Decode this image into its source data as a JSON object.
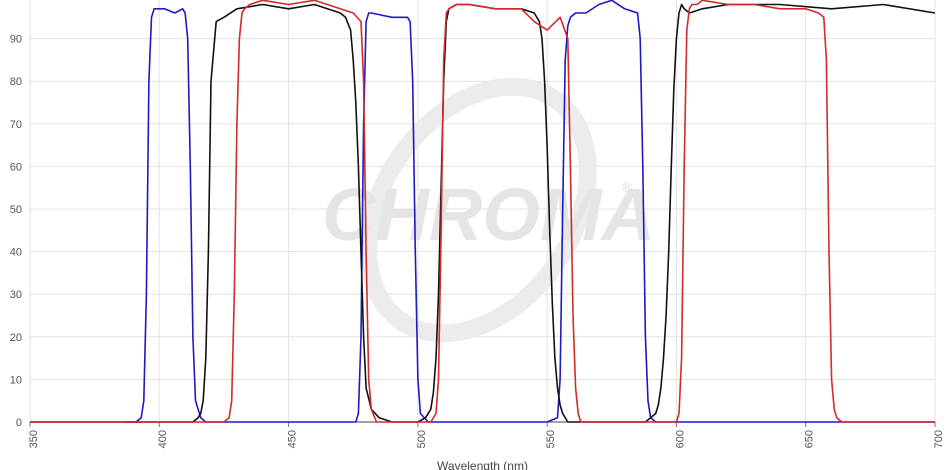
{
  "watermark": {
    "text": "CHROMA",
    "registered": "®"
  },
  "chart_data": {
    "type": "line",
    "title": "",
    "xlabel": "Wavelength (nm)",
    "ylabel": "",
    "xlim": [
      350,
      700
    ],
    "ylim": [
      0,
      100
    ],
    "xticks": [
      350,
      400,
      450,
      500,
      550,
      600,
      650,
      700
    ],
    "yticks": [
      0,
      10,
      20,
      30,
      40,
      50,
      60,
      70,
      80,
      90
    ],
    "grid": true,
    "legend": "none",
    "series": [
      {
        "color": "#1a1ac8",
        "x": [
          387,
          391,
          393,
          394,
          395,
          396,
          397,
          398,
          402,
          406,
          409,
          410,
          411,
          412,
          413,
          414,
          416,
          418,
          430,
          476,
          477,
          478,
          479,
          480,
          481,
          482,
          490,
          496,
          497,
          498,
          499,
          500,
          501,
          504,
          510,
          550,
          554,
          555,
          556,
          557,
          558,
          559,
          561,
          565,
          570,
          575,
          580,
          585,
          586,
          587,
          588,
          589,
          590,
          592,
          595,
          600,
          700
        ],
        "y": [
          0,
          0,
          1,
          5,
          30,
          80,
          95,
          97,
          97,
          96,
          97,
          96,
          90,
          60,
          20,
          5,
          1,
          0,
          0,
          0,
          2,
          20,
          70,
          94,
          96,
          96,
          95,
          95,
          94,
          80,
          40,
          10,
          2,
          0,
          0,
          0,
          1,
          10,
          50,
          85,
          93,
          95,
          96,
          96,
          98,
          99,
          97,
          96,
          90,
          60,
          20,
          5,
          1,
          0,
          0,
          0,
          0
        ]
      },
      {
        "color": "#111111",
        "x": [
          350,
          385,
          400,
          405,
          410,
          413,
          415,
          416,
          417,
          418,
          419,
          420,
          422,
          425,
          430,
          440,
          450,
          460,
          465,
          470,
          472,
          474,
          475,
          476,
          477,
          478,
          479,
          480,
          482,
          485,
          490,
          495,
          500,
          503,
          505,
          506,
          507,
          508,
          509,
          510,
          511,
          512,
          515,
          520,
          530,
          540,
          545,
          547,
          548,
          549,
          550,
          551,
          552,
          553,
          554,
          555,
          556,
          557,
          558,
          560,
          565,
          570,
          575,
          580,
          585,
          588,
          590,
          592,
          593,
          594,
          595,
          596,
          597,
          598,
          599,
          600,
          601,
          602,
          603,
          605,
          610,
          620,
          640,
          660,
          680,
          700
        ],
        "y": [
          0,
          0,
          0,
          0,
          0,
          0,
          1,
          2,
          5,
          15,
          40,
          80,
          94,
          95,
          97,
          98,
          97,
          98,
          97,
          96,
          95,
          92,
          85,
          75,
          60,
          40,
          20,
          8,
          3,
          1,
          0,
          0,
          0,
          1,
          3,
          7,
          15,
          30,
          55,
          80,
          94,
          97,
          98,
          98,
          97,
          97,
          96,
          94,
          90,
          80,
          65,
          45,
          28,
          15,
          8,
          4,
          2,
          1,
          0,
          0,
          0,
          0,
          0,
          0,
          0,
          0,
          1,
          2,
          4,
          8,
          15,
          25,
          40,
          60,
          78,
          90,
          96,
          98,
          97,
          96,
          97,
          98,
          98,
          97,
          98,
          96
        ]
      },
      {
        "color": "#d42a2a",
        "x": [
          350,
          425,
          427,
          428,
          429,
          430,
          431,
          432,
          433,
          435,
          440,
          450,
          460,
          470,
          475,
          478,
          479,
          480,
          481,
          482,
          484,
          490,
          505,
          507,
          508,
          509,
          510,
          511,
          512,
          515,
          520,
          530,
          540,
          545,
          550,
          555,
          558,
          559,
          560,
          561,
          562,
          563,
          565,
          570,
          600,
          601,
          602,
          603,
          604,
          605,
          606,
          608,
          610,
          620,
          630,
          640,
          650,
          655,
          657,
          658,
          659,
          660,
          661,
          662,
          664,
          700
        ],
        "y": [
          0,
          0,
          1,
          5,
          30,
          70,
          90,
          96,
          97,
          98,
          99,
          98,
          99,
          97,
          96,
          94,
          80,
          40,
          10,
          3,
          0,
          0,
          0,
          2,
          10,
          45,
          85,
          96,
          97,
          98,
          98,
          97,
          97,
          94,
          92,
          95,
          90,
          60,
          25,
          8,
          2,
          0,
          0,
          0,
          0,
          2,
          15,
          60,
          92,
          97,
          98,
          98,
          99,
          98,
          98,
          97,
          97,
          96,
          95,
          85,
          40,
          10,
          3,
          1,
          0,
          0
        ]
      }
    ]
  }
}
